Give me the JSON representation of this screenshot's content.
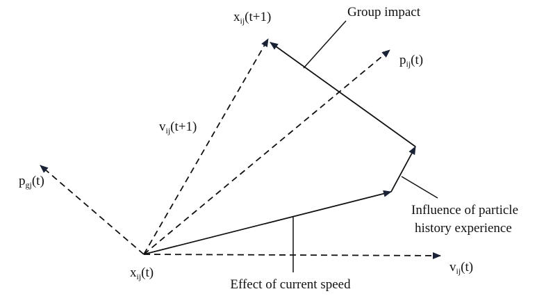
{
  "labels": [
    {
      "base": "x",
      "sub": "ij",
      "arg": "(t+1)"
    },
    {
      "base": "p",
      "sub": "ij",
      "arg": "(t)"
    },
    {
      "base": "v",
      "sub": "ij",
      "arg": "(t+1)"
    },
    {
      "base": "p",
      "sub": "gj",
      "arg": "(t)"
    },
    {
      "base": "x",
      "sub": "ij",
      "arg": "(t)"
    },
    {
      "base": "v",
      "sub": "ij",
      "arg": "(t)"
    }
  ],
  "annotations": [
    "Group impact",
    "Influence of particle",
    "history experience",
    "Effect of current speed"
  ]
}
